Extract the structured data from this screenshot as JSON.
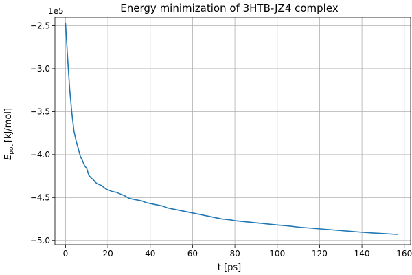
{
  "chart_data": {
    "type": "line",
    "title": "Energy minimization of 3HTB-JZ4 complex",
    "xlabel": "t [ps]",
    "ylabel_main": "E",
    "ylabel_sub": "pot",
    "ylabel_unit": "[kJ/mol]",
    "offset_text": "1e5",
    "xlim": [
      -5,
      163
    ],
    "ylim": [
      -5.05,
      -2.4
    ],
    "xticks": [
      0,
      20,
      40,
      60,
      80,
      100,
      120,
      140,
      160
    ],
    "xtick_labels": [
      "0",
      "20",
      "40",
      "60",
      "80",
      "100",
      "120",
      "140",
      "160"
    ],
    "yticks": [
      -5.0,
      -4.5,
      -4.0,
      -3.5,
      -3.0,
      -2.5
    ],
    "ytick_labels": [
      "−5.0",
      "−4.5",
      "−4.0",
      "−3.5",
      "−3.0",
      "−2.5"
    ],
    "grid": true,
    "color": "#1f77b4",
    "series": [
      {
        "x": [
          0,
          1,
          2,
          3,
          4,
          5,
          6,
          7,
          8,
          9,
          10,
          11,
          12,
          13,
          14,
          15,
          16,
          17,
          18,
          19,
          20,
          22,
          24,
          26,
          28,
          30,
          32,
          34,
          36,
          38,
          40,
          42,
          44,
          46,
          48,
          50,
          52,
          54,
          56,
          58,
          60,
          62,
          64,
          66,
          68,
          70,
          72,
          74,
          76,
          78,
          80,
          84,
          88,
          92,
          96,
          100,
          105,
          110,
          115,
          120,
          125,
          130,
          135,
          140,
          145,
          150,
          155,
          157
        ],
        "values": [
          -2.47,
          -2.88,
          -3.25,
          -3.52,
          -3.73,
          -3.84,
          -3.93,
          -4.02,
          -4.07,
          -4.13,
          -4.16,
          -4.24,
          -4.27,
          -4.29,
          -4.32,
          -4.34,
          -4.35,
          -4.36,
          -4.38,
          -4.4,
          -4.41,
          -4.43,
          -4.44,
          -4.46,
          -4.48,
          -4.51,
          -4.52,
          -4.53,
          -4.54,
          -4.56,
          -4.57,
          -4.58,
          -4.59,
          -4.6,
          -4.62,
          -4.63,
          -4.64,
          -4.65,
          -4.66,
          -4.67,
          -4.68,
          -4.69,
          -4.7,
          -4.71,
          -4.72,
          -4.73,
          -4.74,
          -4.75,
          -4.755,
          -4.76,
          -4.77,
          -4.78,
          -4.79,
          -4.8,
          -4.81,
          -4.82,
          -4.83,
          -4.845,
          -4.855,
          -4.865,
          -4.875,
          -4.885,
          -4.895,
          -4.905,
          -4.913,
          -4.92,
          -4.928,
          -4.93
        ]
      }
    ]
  }
}
